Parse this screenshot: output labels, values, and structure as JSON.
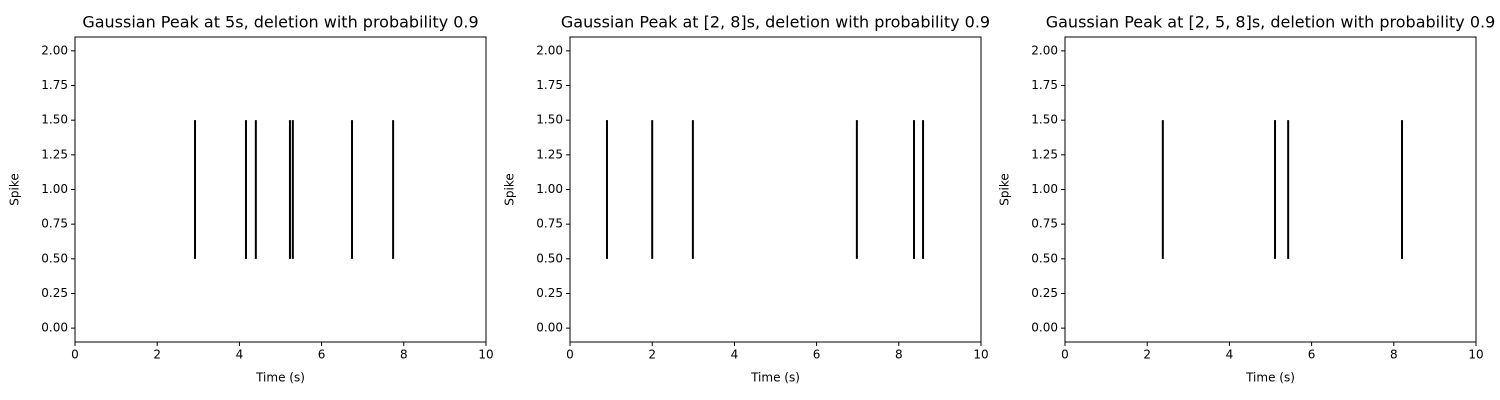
{
  "chart_data": [
    {
      "type": "event",
      "title": "Gaussian Peak at 5s, deletion with probability 0.9",
      "xlabel": "Time (s)",
      "ylabel": "Spike",
      "x": [
        2.92,
        4.16,
        4.4,
        5.23,
        5.3,
        6.74,
        7.74
      ],
      "lineoffset": 1,
      "linelength": 1,
      "color": "#000000",
      "xlim": [
        0,
        10
      ],
      "xticks": [
        0,
        2,
        4,
        6,
        8,
        10
      ],
      "ylim": [
        -0.1,
        2.1
      ],
      "yticks": [
        {
          "value": 0,
          "label": "0.00"
        },
        {
          "value": 0.25,
          "label": "0.25"
        },
        {
          "value": 0.5,
          "label": "0.50"
        },
        {
          "value": 0.75,
          "label": "0.75"
        },
        {
          "value": 1,
          "label": "1.00"
        },
        {
          "value": 1.25,
          "label": "1.25"
        },
        {
          "value": 1.5,
          "label": "1.50"
        },
        {
          "value": 1.75,
          "label": "1.75"
        },
        {
          "value": 2,
          "label": "2.00"
        }
      ]
    },
    {
      "type": "event",
      "title": "Gaussian Peak at [2, 8]s, deletion with probability 0.9",
      "xlabel": "Time (s)",
      "ylabel": "Spike",
      "x": [
        0.9,
        2.0,
        2.99,
        6.98,
        8.37,
        8.59
      ],
      "lineoffset": 1,
      "linelength": 1,
      "color": "#000000",
      "xlim": [
        0,
        10
      ],
      "xticks": [
        0,
        2,
        4,
        6,
        8,
        10
      ],
      "ylim": [
        -0.1,
        2.1
      ],
      "yticks": [
        {
          "value": 0,
          "label": "0.00"
        },
        {
          "value": 0.25,
          "label": "0.25"
        },
        {
          "value": 0.5,
          "label": "0.50"
        },
        {
          "value": 0.75,
          "label": "0.75"
        },
        {
          "value": 1,
          "label": "1.00"
        },
        {
          "value": 1.25,
          "label": "1.25"
        },
        {
          "value": 1.5,
          "label": "1.50"
        },
        {
          "value": 1.75,
          "label": "1.75"
        },
        {
          "value": 2,
          "label": "2.00"
        }
      ]
    },
    {
      "type": "event",
      "title": "Gaussian Peak at [2, 5, 8]s, deletion with probability 0.9",
      "xlabel": "Time (s)",
      "ylabel": "Spike",
      "x": [
        2.38,
        5.11,
        5.43,
        8.2
      ],
      "lineoffset": 1,
      "linelength": 1,
      "color": "#000000",
      "xlim": [
        0,
        10
      ],
      "xticks": [
        0,
        2,
        4,
        6,
        8,
        10
      ],
      "ylim": [
        -0.1,
        2.1
      ],
      "yticks": [
        {
          "value": 0,
          "label": "0.00"
        },
        {
          "value": 0.25,
          "label": "0.25"
        },
        {
          "value": 0.5,
          "label": "0.50"
        },
        {
          "value": 0.75,
          "label": "0.75"
        },
        {
          "value": 1,
          "label": "1.00"
        },
        {
          "value": 1.25,
          "label": "1.25"
        },
        {
          "value": 1.5,
          "label": "1.50"
        },
        {
          "value": 1.75,
          "label": "1.75"
        },
        {
          "value": 2,
          "label": "2.00"
        }
      ]
    }
  ]
}
